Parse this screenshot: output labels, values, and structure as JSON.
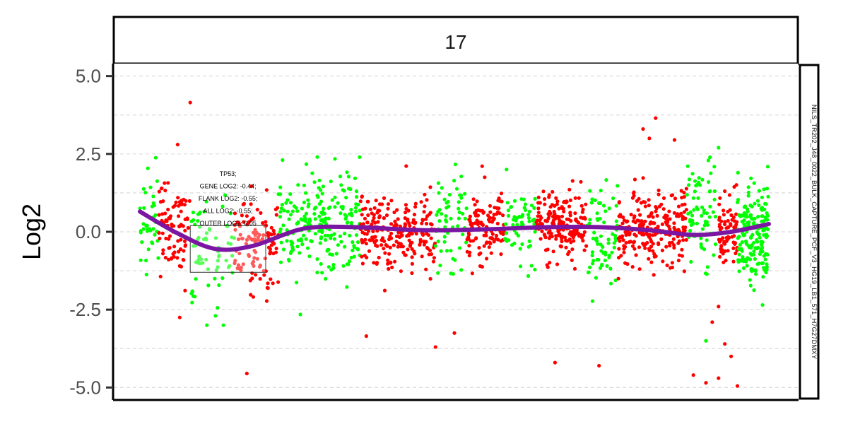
{
  "chart_data": {
    "type": "scatter",
    "facet_label": "17",
    "side_label": "NILS_TR202_J48_0022_BULK_CAPTURE_PCF_V3_HG19_LB1_571_H7G27DMXY",
    "ylabel": "Log2",
    "xlabel": "",
    "ylim": [
      -5.4,
      5.4
    ],
    "y_ticks": [
      {
        "value": 5.0,
        "label": "5.0"
      },
      {
        "value": 2.5,
        "label": "2.5"
      },
      {
        "value": 0.0,
        "label": "0.0"
      },
      {
        "value": -2.5,
        "label": "-2.5"
      },
      {
        "value": -5.0,
        "label": "-5.0"
      }
    ],
    "grid": true,
    "segment_colors": [
      "#00ff00",
      "#ff0000"
    ],
    "trend_color": "#7b16a2",
    "series": [
      {
        "kind": "trend",
        "x": [
          0.0,
          0.06,
          0.12,
          0.18,
          0.26,
          0.34,
          0.45,
          0.55,
          0.65,
          0.73,
          0.81,
          0.88,
          0.94,
          1.0
        ],
        "values": [
          0.65,
          -0.05,
          -0.55,
          -0.45,
          0.1,
          0.15,
          0.05,
          0.08,
          0.15,
          0.15,
          0.05,
          -0.1,
          0.0,
          0.25
        ]
      }
    ],
    "segments": [
      {
        "x_start": 0.0,
        "x_end": 0.03,
        "color": "green",
        "mean": 0.3,
        "sd": 0.8,
        "n": 40
      },
      {
        "x_start": 0.03,
        "x_end": 0.08,
        "color": "red",
        "mean": 0.1,
        "sd": 0.8,
        "n": 90
      },
      {
        "x_start": 0.08,
        "x_end": 0.15,
        "color": "green",
        "mean": -0.6,
        "sd": 0.9,
        "n": 70
      },
      {
        "x_start": 0.15,
        "x_end": 0.22,
        "color": "red",
        "mean": -0.4,
        "sd": 0.8,
        "n": 110
      },
      {
        "x_start": 0.22,
        "x_end": 0.35,
        "color": "green",
        "mean": 0.25,
        "sd": 0.9,
        "n": 220
      },
      {
        "x_start": 0.35,
        "x_end": 0.47,
        "color": "red",
        "mean": 0.0,
        "sd": 0.6,
        "n": 230
      },
      {
        "x_start": 0.47,
        "x_end": 0.52,
        "color": "green",
        "mean": 0.4,
        "sd": 0.8,
        "n": 60
      },
      {
        "x_start": 0.52,
        "x_end": 0.58,
        "color": "red",
        "mean": 0.1,
        "sd": 0.6,
        "n": 110
      },
      {
        "x_start": 0.58,
        "x_end": 0.63,
        "color": "green",
        "mean": 0.25,
        "sd": 0.7,
        "n": 60
      },
      {
        "x_start": 0.63,
        "x_end": 0.71,
        "color": "red",
        "mean": 0.15,
        "sd": 0.5,
        "n": 180
      },
      {
        "x_start": 0.71,
        "x_end": 0.76,
        "color": "green",
        "mean": -0.1,
        "sd": 0.8,
        "n": 70
      },
      {
        "x_start": 0.76,
        "x_end": 0.87,
        "color": "red",
        "mean": 0.05,
        "sd": 0.6,
        "n": 230
      },
      {
        "x_start": 0.87,
        "x_end": 0.92,
        "color": "green",
        "mean": 0.6,
        "sd": 0.8,
        "n": 70
      },
      {
        "x_start": 0.92,
        "x_end": 0.95,
        "color": "red",
        "mean": 0.0,
        "sd": 0.6,
        "n": 70
      },
      {
        "x_start": 0.95,
        "x_end": 1.0,
        "color": "green",
        "mean": 0.0,
        "sd": 0.8,
        "n": 180
      }
    ],
    "outliers": [
      {
        "x": 0.08,
        "y": 4.15,
        "color": "red"
      },
      {
        "x": 0.06,
        "y": 2.8,
        "color": "red"
      },
      {
        "x": 0.17,
        "y": -4.55,
        "color": "red"
      },
      {
        "x": 0.36,
        "y": -3.35,
        "color": "red"
      },
      {
        "x": 0.47,
        "y": -3.7,
        "color": "red"
      },
      {
        "x": 0.5,
        "y": -3.25,
        "color": "red"
      },
      {
        "x": 0.66,
        "y": -4.2,
        "color": "red"
      },
      {
        "x": 0.73,
        "y": -4.3,
        "color": "red"
      },
      {
        "x": 0.8,
        "y": 3.3,
        "color": "red"
      },
      {
        "x": 0.82,
        "y": 3.65,
        "color": "red"
      },
      {
        "x": 0.81,
        "y": 3.0,
        "color": "red"
      },
      {
        "x": 0.85,
        "y": 2.95,
        "color": "red"
      },
      {
        "x": 0.88,
        "y": -4.6,
        "color": "red"
      },
      {
        "x": 0.9,
        "y": -4.85,
        "color": "red"
      },
      {
        "x": 0.92,
        "y": -4.7,
        "color": "red"
      },
      {
        "x": 0.95,
        "y": -4.95,
        "color": "red"
      },
      {
        "x": 0.94,
        "y": -4.0,
        "color": "red"
      },
      {
        "x": 0.93,
        "y": -3.6,
        "color": "red"
      },
      {
        "x": 0.91,
        "y": -2.9,
        "color": "red"
      },
      {
        "x": 0.92,
        "y": -2.4,
        "color": "red"
      },
      {
        "x": 0.9,
        "y": -3.5,
        "color": "green"
      },
      {
        "x": 0.99,
        "y": -2.35,
        "color": "green"
      },
      {
        "x": 0.92,
        "y": 2.7,
        "color": "green"
      }
    ],
    "highlight": {
      "gene": "TP53",
      "x_start": 0.08,
      "x_end": 0.2,
      "y_top": 0.2,
      "y_bottom": -1.3,
      "lines": [
        "TP53;",
        "GENE LOG2: -0.44;",
        "FLANK LOG2: -0.55;",
        "ALL LOG2: -0.55;",
        "OUTER LOG2: 0.05"
      ]
    }
  }
}
